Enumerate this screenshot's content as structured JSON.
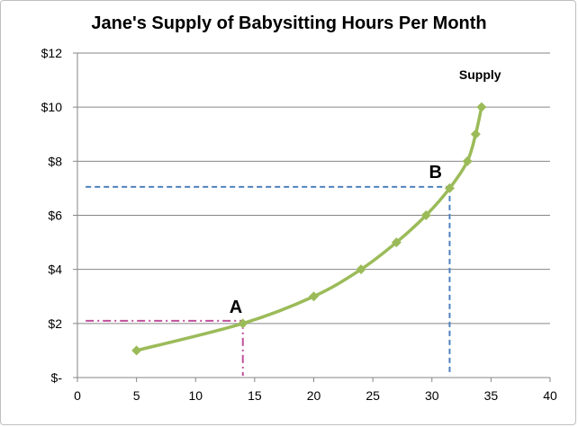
{
  "chart_data": {
    "type": "line",
    "title": "Jane's Supply of Babysitting Hours Per Month",
    "xlabel": "",
    "ylabel": "",
    "xlim": [
      0,
      40
    ],
    "ylim": [
      0,
      12
    ],
    "x_ticks": [
      "0",
      "5",
      "10",
      "15",
      "20",
      "25",
      "30",
      "35",
      "40"
    ],
    "y_ticks": [
      "$-",
      "$2",
      "$4",
      "$6",
      "$8",
      "$10",
      "$12"
    ],
    "grid": "horizontal",
    "series": [
      {
        "name": "Supply",
        "color": "#9bbb59",
        "x": [
          5,
          14,
          20,
          24,
          27,
          29.5,
          31.5,
          33,
          33.7,
          34.2
        ],
        "y": [
          1,
          2,
          3,
          4,
          5,
          6,
          7,
          8,
          9,
          10
        ]
      }
    ],
    "annotations": [
      {
        "label": "A",
        "x": 14,
        "y": 2.1,
        "color": "#c0509b",
        "style": "dash-dot"
      },
      {
        "label": "B",
        "x": 31.5,
        "y": 7.05,
        "color": "#4f81bd",
        "style": "dashed"
      }
    ]
  }
}
